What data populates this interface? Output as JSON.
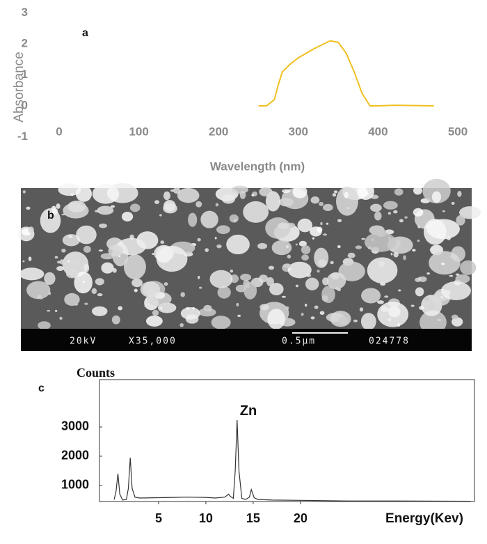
{
  "chart_data": [
    {
      "type": "line",
      "panel_label": "a",
      "x_label": "Wavelength (nm)",
      "y_label": "Absorbance",
      "x": [
        250,
        260,
        270,
        275,
        280,
        290,
        300,
        320,
        340,
        350,
        360,
        370,
        380,
        390,
        400,
        420,
        450,
        470
      ],
      "values": [
        0,
        0,
        0.2,
        0.7,
        1.1,
        1.35,
        1.55,
        1.85,
        2.1,
        2.05,
        1.7,
        1.1,
        0.4,
        0,
        0,
        0.02,
        0.01,
        0
      ],
      "color": "#f0c020",
      "xlim": [
        0,
        500
      ],
      "xticks": [
        0,
        100,
        200,
        300,
        400,
        500
      ],
      "ylim": [
        -1,
        3
      ],
      "yticks": [
        -1,
        0,
        1,
        2,
        3
      ]
    },
    {
      "type": "line",
      "panel_label": "c",
      "x_label": "Energy(Kev)",
      "y_label": "Counts",
      "annotation": "Zn",
      "x": [
        0.3,
        0.5,
        0.7,
        0.9,
        1.2,
        1.6,
        1.8,
        2.0,
        2.2,
        2.5,
        3,
        5,
        8,
        10,
        11,
        12,
        12.2,
        12.4,
        12.6,
        12.9,
        13.1,
        13.3,
        13.5,
        13.8,
        14.2,
        14.6,
        14.8,
        15.1,
        15.5,
        17,
        20,
        25,
        30,
        38
      ],
      "values": [
        520,
        800,
        1400,
        700,
        500,
        520,
        900,
        1950,
        900,
        600,
        570,
        580,
        600,
        590,
        570,
        600,
        650,
        700,
        620,
        560,
        1500,
        3240,
        1500,
        560,
        520,
        600,
        860,
        580,
        520,
        500,
        490,
        470,
        470,
        460
      ],
      "color": "#333333",
      "xlim": [
        -1.25,
        38.4
      ],
      "xticks": [
        5,
        10,
        15,
        20
      ],
      "ylim": [
        450,
        4620
      ],
      "yticks": [
        1000,
        2000,
        3000
      ]
    }
  ],
  "sem_image": {
    "panel_label": "b",
    "caption": [
      "20kV",
      "X35,000",
      "0.5µm",
      "024778"
    ]
  }
}
